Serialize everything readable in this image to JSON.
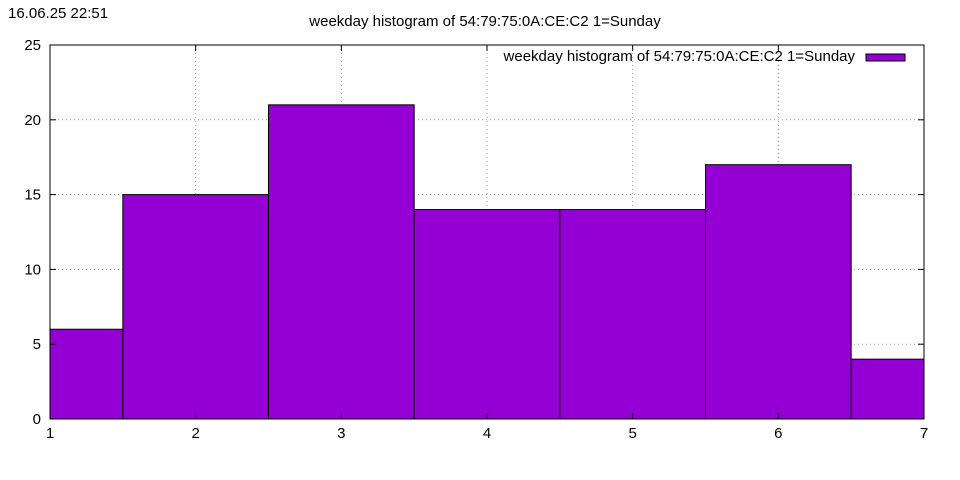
{
  "timestamp": "16.06.25 22:51",
  "chart_data": {
    "type": "bar",
    "title": "weekday histogram of 54:79:75:0A:CE:C2 1=Sunday",
    "xlabel": "",
    "ylabel": "",
    "x_ticks": [
      "1",
      "2",
      "3",
      "4",
      "5",
      "6",
      "7"
    ],
    "y_ticks": [
      "0",
      "5",
      "10",
      "15",
      "20",
      "25"
    ],
    "xlim": [
      1,
      7
    ],
    "ylim": [
      0,
      25
    ],
    "grid": true,
    "legend": {
      "position": "top-right",
      "entries": [
        "weekday histogram of 54:79:75:0A:CE:C2 1=Sunday"
      ]
    },
    "series": [
      {
        "name": "weekday histogram of 54:79:75:0A:CE:C2 1=Sunday",
        "color": "#9400d3",
        "bins": [
          {
            "x": 1,
            "value": 6
          },
          {
            "x": 2,
            "value": 15
          },
          {
            "x": 3,
            "value": 21
          },
          {
            "x": 4,
            "value": 14
          },
          {
            "x": 5,
            "value": 14
          },
          {
            "x": 6,
            "value": 17
          },
          {
            "x": 7,
            "value": 4
          }
        ]
      }
    ]
  }
}
